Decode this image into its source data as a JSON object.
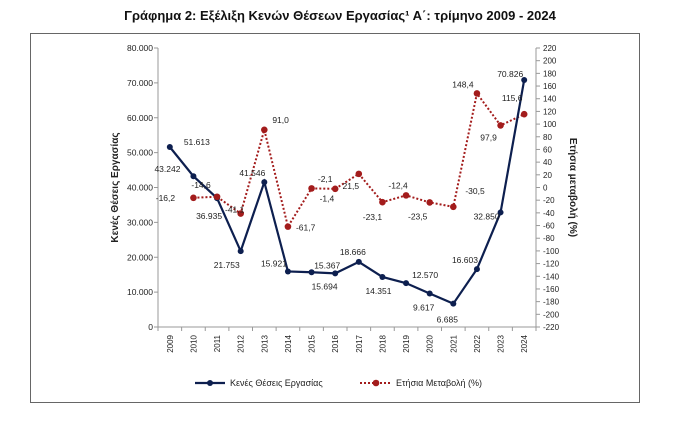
{
  "chart_data": {
    "type": "line",
    "title": "Γράφημα 2: Εξέλιξη Κενών Θέσεων Εργασίας¹ Α΄: τρίμηνο 2009 - 2024",
    "ylabel": "Κενές Θέσεις Εργασίας",
    "y2label": "Ετήσια μεταβολή (%)",
    "ylim": [
      0,
      80000
    ],
    "y2lim": [
      -220,
      220
    ],
    "yticks": [
      "0",
      "10.000",
      "20.000",
      "30.000",
      "40.000",
      "50.000",
      "60.000",
      "70.000",
      "80.000"
    ],
    "y2ticks": [
      "-220",
      "-200",
      "-180",
      "-160",
      "-140",
      "-120",
      "-100",
      "-80",
      "-60",
      "-40",
      "-20",
      "0",
      "20",
      "40",
      "60",
      "80",
      "100",
      "120",
      "140",
      "160",
      "180",
      "200",
      "220"
    ],
    "categories": [
      "2009",
      "2010",
      "2011",
      "2012",
      "2013",
      "2014",
      "2015",
      "2016",
      "2017",
      "2018",
      "2019",
      "2020",
      "2021",
      "2022",
      "2023",
      "2024"
    ],
    "legend_position": "bottom",
    "grid": false,
    "series": [
      {
        "name": "Κενές Θέσεις Εργασίας",
        "axis": "left",
        "color": "#0d1f4f",
        "style": "solid",
        "values": [
          51613,
          43242,
          36935,
          21753,
          41546,
          15921,
          15694,
          15367,
          18666,
          14351,
          12570,
          9617,
          6685,
          16603,
          32850,
          70826
        ],
        "labels": [
          "51.613",
          "43.242",
          "36.935",
          "21.753",
          "41.546",
          "15.921",
          "15.694",
          "15.367",
          "18.666",
          "14.351",
          "12.570",
          "9.617",
          "6.685",
          "16.603",
          "32.850",
          "70.826"
        ]
      },
      {
        "name": "Ετήσια Μεταβολή  (%)",
        "axis": "right",
        "color": "#a31c1c",
        "style": "dotted",
        "values": [
          null,
          -16.2,
          -14.6,
          -41.1,
          91.0,
          -61.7,
          -1.4,
          -2.1,
          21.5,
          -23.1,
          -12.4,
          -23.5,
          -30.5,
          148.4,
          97.9,
          115.6
        ],
        "labels": [
          "",
          "-16,2",
          "-14,6",
          "-41,1",
          "91,0",
          "-61,7",
          "-1,4",
          "-2,1",
          "21,5",
          "-23,1",
          "-12,4",
          "-23,5",
          "-30,5",
          "148,4",
          "97,9",
          "115,6"
        ]
      }
    ]
  }
}
